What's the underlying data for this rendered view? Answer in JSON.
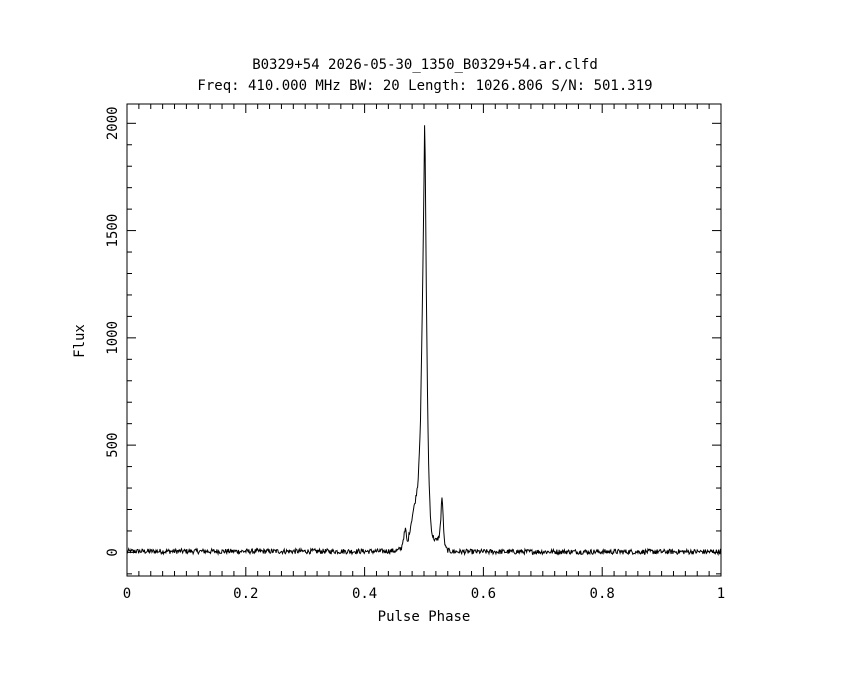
{
  "chart_data": {
    "type": "line",
    "title": "B0329+54 2026-05-30_1350_B0329+54.ar.clfd",
    "subtitle": "Freq: 410.000 MHz BW: 20 Length: 1026.806 S/N: 501.319",
    "xlabel": "Pulse Phase",
    "ylabel": "Flux",
    "xlim": [
      0,
      1
    ],
    "ylim": [
      -110,
      2090
    ],
    "x_ticks": [
      0,
      0.2,
      0.4,
      0.6,
      0.8,
      1
    ],
    "x_tick_labels": [
      "0",
      "0.2",
      "0.4",
      "0.6",
      "0.8",
      "1"
    ],
    "y_ticks": [
      0,
      500,
      1000,
      1500,
      2000
    ],
    "y_tick_labels": [
      "0",
      "500",
      "1000",
      "1500",
      "2000"
    ],
    "grid": false,
    "series": [
      {
        "x": [
          0,
          0.43,
          0.455,
          0.462,
          0.466,
          0.469,
          0.472,
          0.476,
          0.481,
          0.486,
          0.49,
          0.494,
          0.497,
          0.499,
          0.501,
          0.502,
          0.504,
          0.506,
          0.508,
          0.511,
          0.514,
          0.518,
          0.522,
          0.526,
          0.528,
          0.53,
          0.532,
          0.534,
          0.536,
          0.539,
          0.543,
          0.55,
          0.57,
          1
        ],
        "y": [
          5,
          5,
          8,
          20,
          75,
          110,
          40,
          100,
          180,
          250,
          330,
          600,
          1100,
          1500,
          1990,
          1850,
          1200,
          700,
          380,
          150,
          80,
          60,
          55,
          80,
          140,
          270,
          180,
          60,
          25,
          12,
          6,
          4,
          3,
          3
        ]
      }
    ]
  }
}
